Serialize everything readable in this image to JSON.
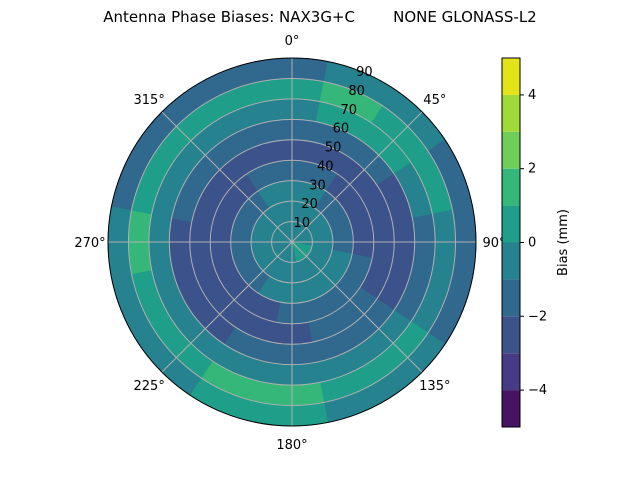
{
  "chart_data": {
    "type": "heatmap",
    "subtype": "polar-contour",
    "title": "Antenna Phase Biases: NAX3G+C        NONE GLONASS-L2",
    "theta_direction": "clockwise",
    "theta_zero": "north",
    "theta_tick_labels": [
      "0°",
      "45°",
      "90°",
      "135°",
      "180°",
      "225°",
      "270°",
      "315°"
    ],
    "theta_ticks": [
      0,
      45,
      90,
      135,
      180,
      225,
      270,
      315
    ],
    "r_tick_labels": [
      "10",
      "20",
      "30",
      "40",
      "50",
      "60",
      "70",
      "80",
      "90"
    ],
    "r_ticks": [
      10,
      20,
      30,
      40,
      50,
      60,
      70,
      80,
      90
    ],
    "rlim": [
      0,
      90
    ],
    "grid": true,
    "azimuths": [
      0,
      22.5,
      45,
      67.5,
      90,
      112.5,
      135,
      157.5,
      180,
      202.5,
      225,
      247.5,
      270,
      292.5,
      315,
      337.5
    ],
    "radii": [
      5,
      15,
      25,
      35,
      45,
      55,
      65,
      75,
      85
    ],
    "bias_mm": [
      [
        -0.5,
        -0.5,
        -0.5,
        -0.5,
        -0.5,
        0.5,
        0.5,
        0.5,
        -0.5,
        -0.5,
        -0.5,
        -0.5,
        -0.5,
        -0.5,
        -0.5,
        -0.5
      ],
      [
        -0.5,
        -0.5,
        -0.5,
        -0.5,
        -0.5,
        -0.5,
        -0.5,
        -0.5,
        -0.5,
        -0.5,
        -0.5,
        -0.5,
        -0.5,
        -0.5,
        -0.5,
        -0.5
      ],
      [
        -0.5,
        -0.5,
        -1.5,
        -1.5,
        -1.5,
        -0.5,
        -0.5,
        -0.5,
        -0.5,
        -0.5,
        -1.5,
        -1.5,
        -1.5,
        -1.5,
        -1.5,
        -0.5
      ],
      [
        -1.5,
        -1.5,
        -2.5,
        -2.5,
        -2.5,
        -1.5,
        -1.5,
        -1.5,
        -1.5,
        -2.5,
        -2.5,
        -2.5,
        -2.5,
        -2.5,
        -2.5,
        -1.5
      ],
      [
        -2.5,
        -2.5,
        -2.5,
        -2.5,
        -2.5,
        -2.5,
        -1.5,
        -1.5,
        -2.5,
        -2.5,
        -2.5,
        -2.5,
        -2.5,
        -2.5,
        -2.5,
        -2.5
      ],
      [
        -1.5,
        -1.5,
        -1.5,
        -2.5,
        -2.5,
        -2.5,
        -1.5,
        -1.5,
        -1.5,
        -1.5,
        -2.5,
        -2.5,
        -2.5,
        -1.5,
        -1.5,
        -1.5
      ],
      [
        -0.5,
        0.5,
        0.5,
        -0.5,
        -1.5,
        -1.5,
        -0.5,
        -0.5,
        -0.5,
        -0.5,
        -0.5,
        -0.5,
        -0.5,
        -0.5,
        -0.5,
        -0.5
      ],
      [
        0.5,
        1.5,
        0.5,
        0.5,
        -0.5,
        -0.5,
        0.5,
        0.5,
        1.5,
        1.5,
        0.5,
        0.5,
        1.5,
        0.5,
        0.5,
        0.5
      ],
      [
        -1.5,
        -0.5,
        -0.5,
        -1.5,
        -1.5,
        -1.5,
        -0.5,
        -0.5,
        0.5,
        0.5,
        -0.5,
        -0.5,
        -0.5,
        -1.5,
        -1.5,
        -1.5
      ]
    ],
    "colorbar": {
      "label": "Bias (mm)",
      "range": [
        -5,
        5
      ],
      "levels": [
        -5,
        -4,
        -3,
        -2,
        -1,
        0,
        1,
        2,
        3,
        4,
        5
      ],
      "tick_values": [
        -4,
        -2,
        0,
        2,
        4
      ],
      "tick_labels": [
        "−4",
        "−2",
        "0",
        "2",
        "4"
      ],
      "colormap": "viridis",
      "colors": [
        "#471365",
        "#473b85",
        "#3b528b",
        "#31688e",
        "#26828e",
        "#1f9e89",
        "#35b779",
        "#6ece58",
        "#a0da39",
        "#e2e418"
      ]
    }
  }
}
